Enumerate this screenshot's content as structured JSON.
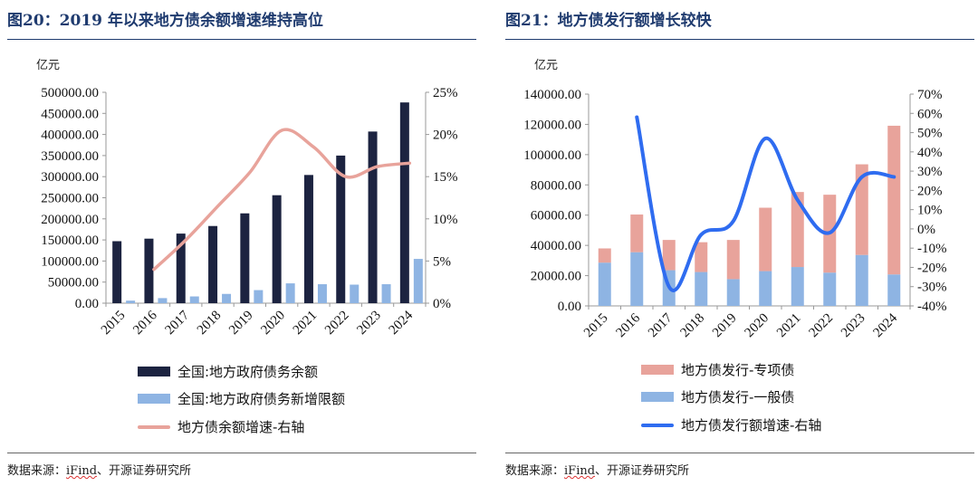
{
  "left": {
    "title": "图20：2019 年以来地方债余额增速维持高位",
    "source_prefix": "数据来源：",
    "source_ifind": "iFind",
    "source_suffix": "、开源证券研究所",
    "legend": {
      "balance": "全国:地方政府债务余额",
      "new_limit": "全国:地方政府债务新增限额",
      "growth": "地方债余额增速-右轴"
    }
  },
  "right": {
    "title": "图21：地方债发行额增长较快",
    "source_prefix": "数据来源：",
    "source_ifind": "iFind",
    "source_suffix": "、开源证券研究所",
    "legend": {
      "special": "地方债发行-专项债",
      "general": "地方债发行-一般债",
      "growth": "地方债发行额增速-右轴"
    }
  },
  "colors": {
    "navy": "#1c2340",
    "light_blue": "#8eb4e3",
    "salmon": "#e8a39b",
    "line_blue": "#2f6cf0",
    "title": "#1f3b6f"
  },
  "chart_data": [
    {
      "type": "bar",
      "unit_label": "亿元",
      "categories": [
        "2015",
        "2016",
        "2017",
        "2018",
        "2019",
        "2020",
        "2021",
        "2022",
        "2023",
        "2024"
      ],
      "left_ticks": [
        "500000.00",
        "450000.00",
        "400000.00",
        "350000.00",
        "300000.00",
        "250000.00",
        "200000.00",
        "150000.00",
        "100000.00",
        "50000.00",
        "0.00"
      ],
      "right_ticks": [
        "25%",
        "20%",
        "15%",
        "10%",
        "5%",
        "0%"
      ],
      "ylim": [
        0,
        500000
      ],
      "ylim_right": [
        0,
        25
      ],
      "series": [
        {
          "name": "全国:地方政府债务余额",
          "kind": "bar",
          "values": [
            147000,
            153000,
            165000,
            183000,
            213000,
            256000,
            304000,
            350000,
            407000,
            476000
          ]
        },
        {
          "name": "全国:地方政府债务新增限额",
          "kind": "bar",
          "values": [
            6000,
            12000,
            16000,
            22000,
            31000,
            47000,
            45000,
            44000,
            45000,
            105000
          ]
        },
        {
          "name": "地方债余额增速-右轴",
          "kind": "line",
          "axis": "right",
          "values": [
            null,
            4,
            7.5,
            11.5,
            15.5,
            20.5,
            18.5,
            15,
            16.2,
            16.6
          ]
        }
      ]
    },
    {
      "type": "bar",
      "unit_label": "亿元",
      "categories": [
        "2015",
        "2016",
        "2017",
        "2018",
        "2019",
        "2020",
        "2021",
        "2022",
        "2023",
        "2024"
      ],
      "left_ticks": [
        "140000.00",
        "120000.00",
        "100000.00",
        "80000.00",
        "60000.00",
        "40000.00",
        "20000.00",
        "0.00"
      ],
      "right_ticks": [
        "70%",
        "60%",
        "50%",
        "40%",
        "30%",
        "20%",
        "10%",
        "0%",
        "-10%",
        "-20%",
        "-30%",
        "-40%"
      ],
      "ylim": [
        0,
        140000
      ],
      "ylim_right": [
        -40,
        70
      ],
      "stacked": true,
      "series": [
        {
          "name": "地方债发行-一般债",
          "kind": "bar",
          "values": [
            28600,
            35500,
            23600,
            22400,
            17700,
            23000,
            25700,
            22000,
            33700,
            20800
          ]
        },
        {
          "name": "地方债发行-专项债",
          "kind": "bar",
          "values": [
            9400,
            24900,
            20000,
            19700,
            25900,
            41900,
            49600,
            51500,
            59900,
            98300
          ]
        },
        {
          "name": "地方债发行额增速-右轴",
          "kind": "line",
          "axis": "right",
          "values": [
            null,
            58,
            -30,
            -3,
            4,
            47,
            15,
            -2,
            27,
            27
          ]
        }
      ]
    }
  ]
}
